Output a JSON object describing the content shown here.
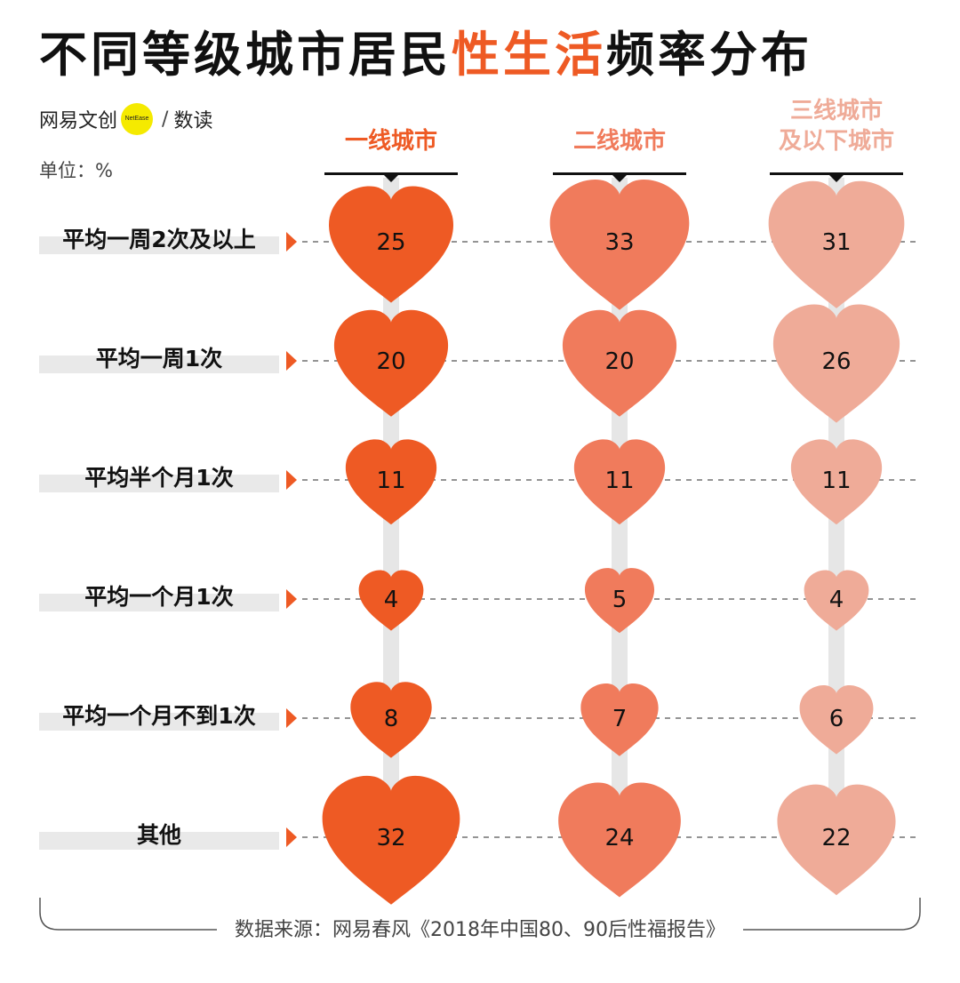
{
  "title": {
    "part1": "不同等级城市居民",
    "highlight": "性生活",
    "part2": "频率分布"
  },
  "brand": {
    "name": "网易文创",
    "badge": "NetEase",
    "slash": "/",
    "sub": "数读"
  },
  "unit_label": "单位：%",
  "colors": {
    "accent": "#ee5a24",
    "tier1": "#ee5a24",
    "tier2": "#f07b5c",
    "tier3": "#efab98",
    "track": "#e6e6e6"
  },
  "chart_data": {
    "type": "table",
    "unit": "%",
    "categories": [
      "平均一周2次及以上",
      "平均一周1次",
      "平均半个月1次",
      "平均一个月1次",
      "平均一个月不到1次",
      "其他"
    ],
    "series": [
      {
        "name": "一线城市",
        "name_lines": [
          "一线城市"
        ],
        "values": [
          25,
          20,
          11,
          4,
          8,
          32
        ]
      },
      {
        "name": "二线城市",
        "name_lines": [
          "二线城市"
        ],
        "values": [
          33,
          20,
          11,
          5,
          7,
          24
        ]
      },
      {
        "name": "三线城市及以下城市",
        "name_lines": [
          "三线城市",
          "及以下城市"
        ],
        "values": [
          31,
          26,
          11,
          4,
          6,
          22
        ]
      }
    ]
  },
  "source": "数据来源：网易春风《2018年中国80、90后性福报告》"
}
